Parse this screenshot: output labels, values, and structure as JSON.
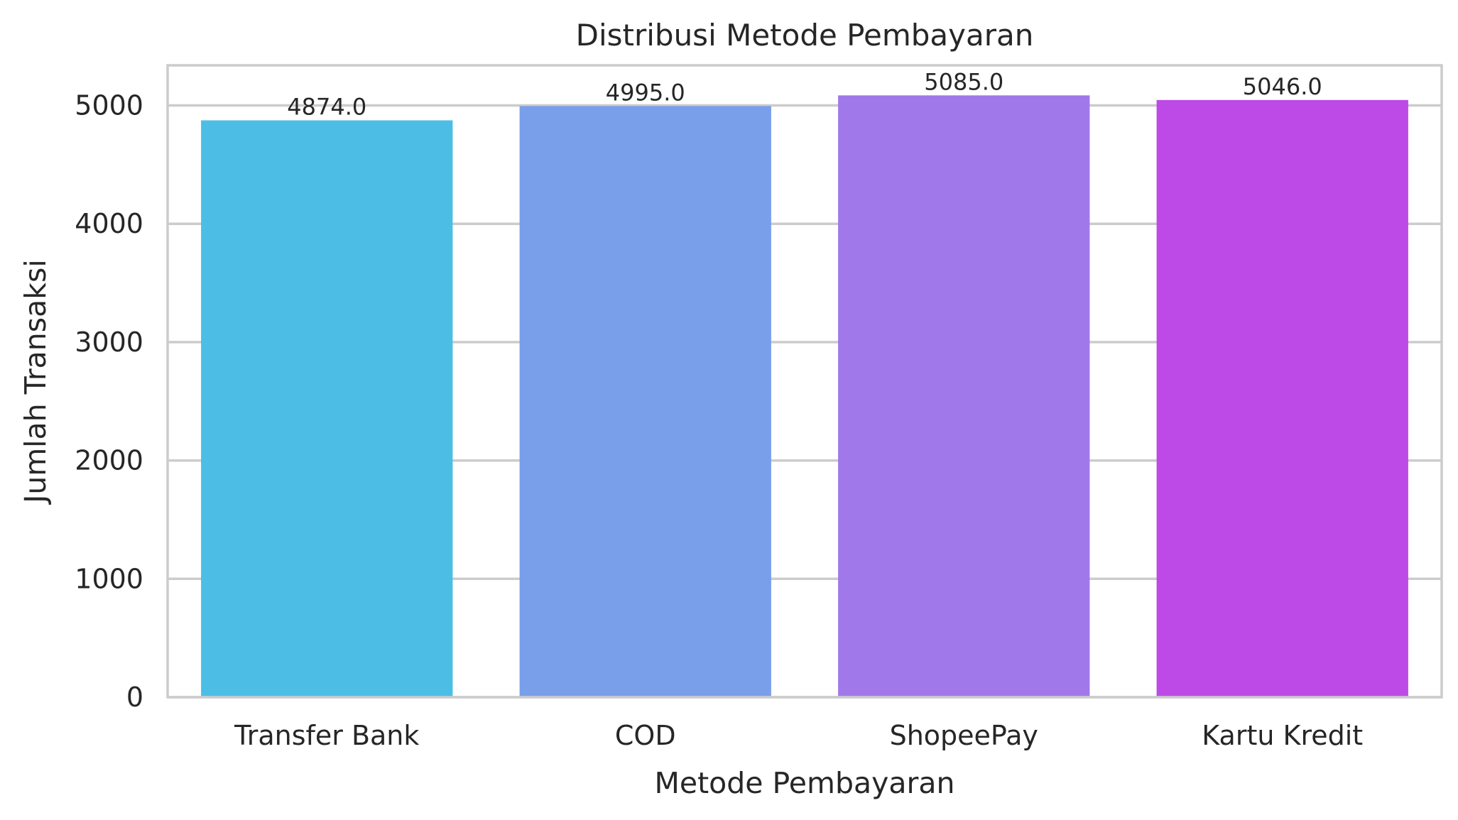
{
  "chart_data": {
    "type": "bar",
    "title": "Distribusi Metode Pembayaran",
    "xlabel": "Metode Pembayaran",
    "ylabel": "Jumlah Transaksi",
    "categories": [
      "Transfer Bank",
      "COD",
      "ShopeePay",
      "Kartu Kredit"
    ],
    "values": [
      4874,
      4995,
      5085,
      5046
    ],
    "data_labels": [
      "4874.0",
      "4995.0",
      "5085.0",
      "5046.0"
    ],
    "colors": [
      "#4cbee6",
      "#7a9fea",
      "#a078ea",
      "#bd4ae6"
    ],
    "yticks": [
      0,
      1000,
      2000,
      3000,
      4000,
      5000
    ],
    "ylim": [
      0,
      5339
    ],
    "grid": true,
    "legend": false
  }
}
